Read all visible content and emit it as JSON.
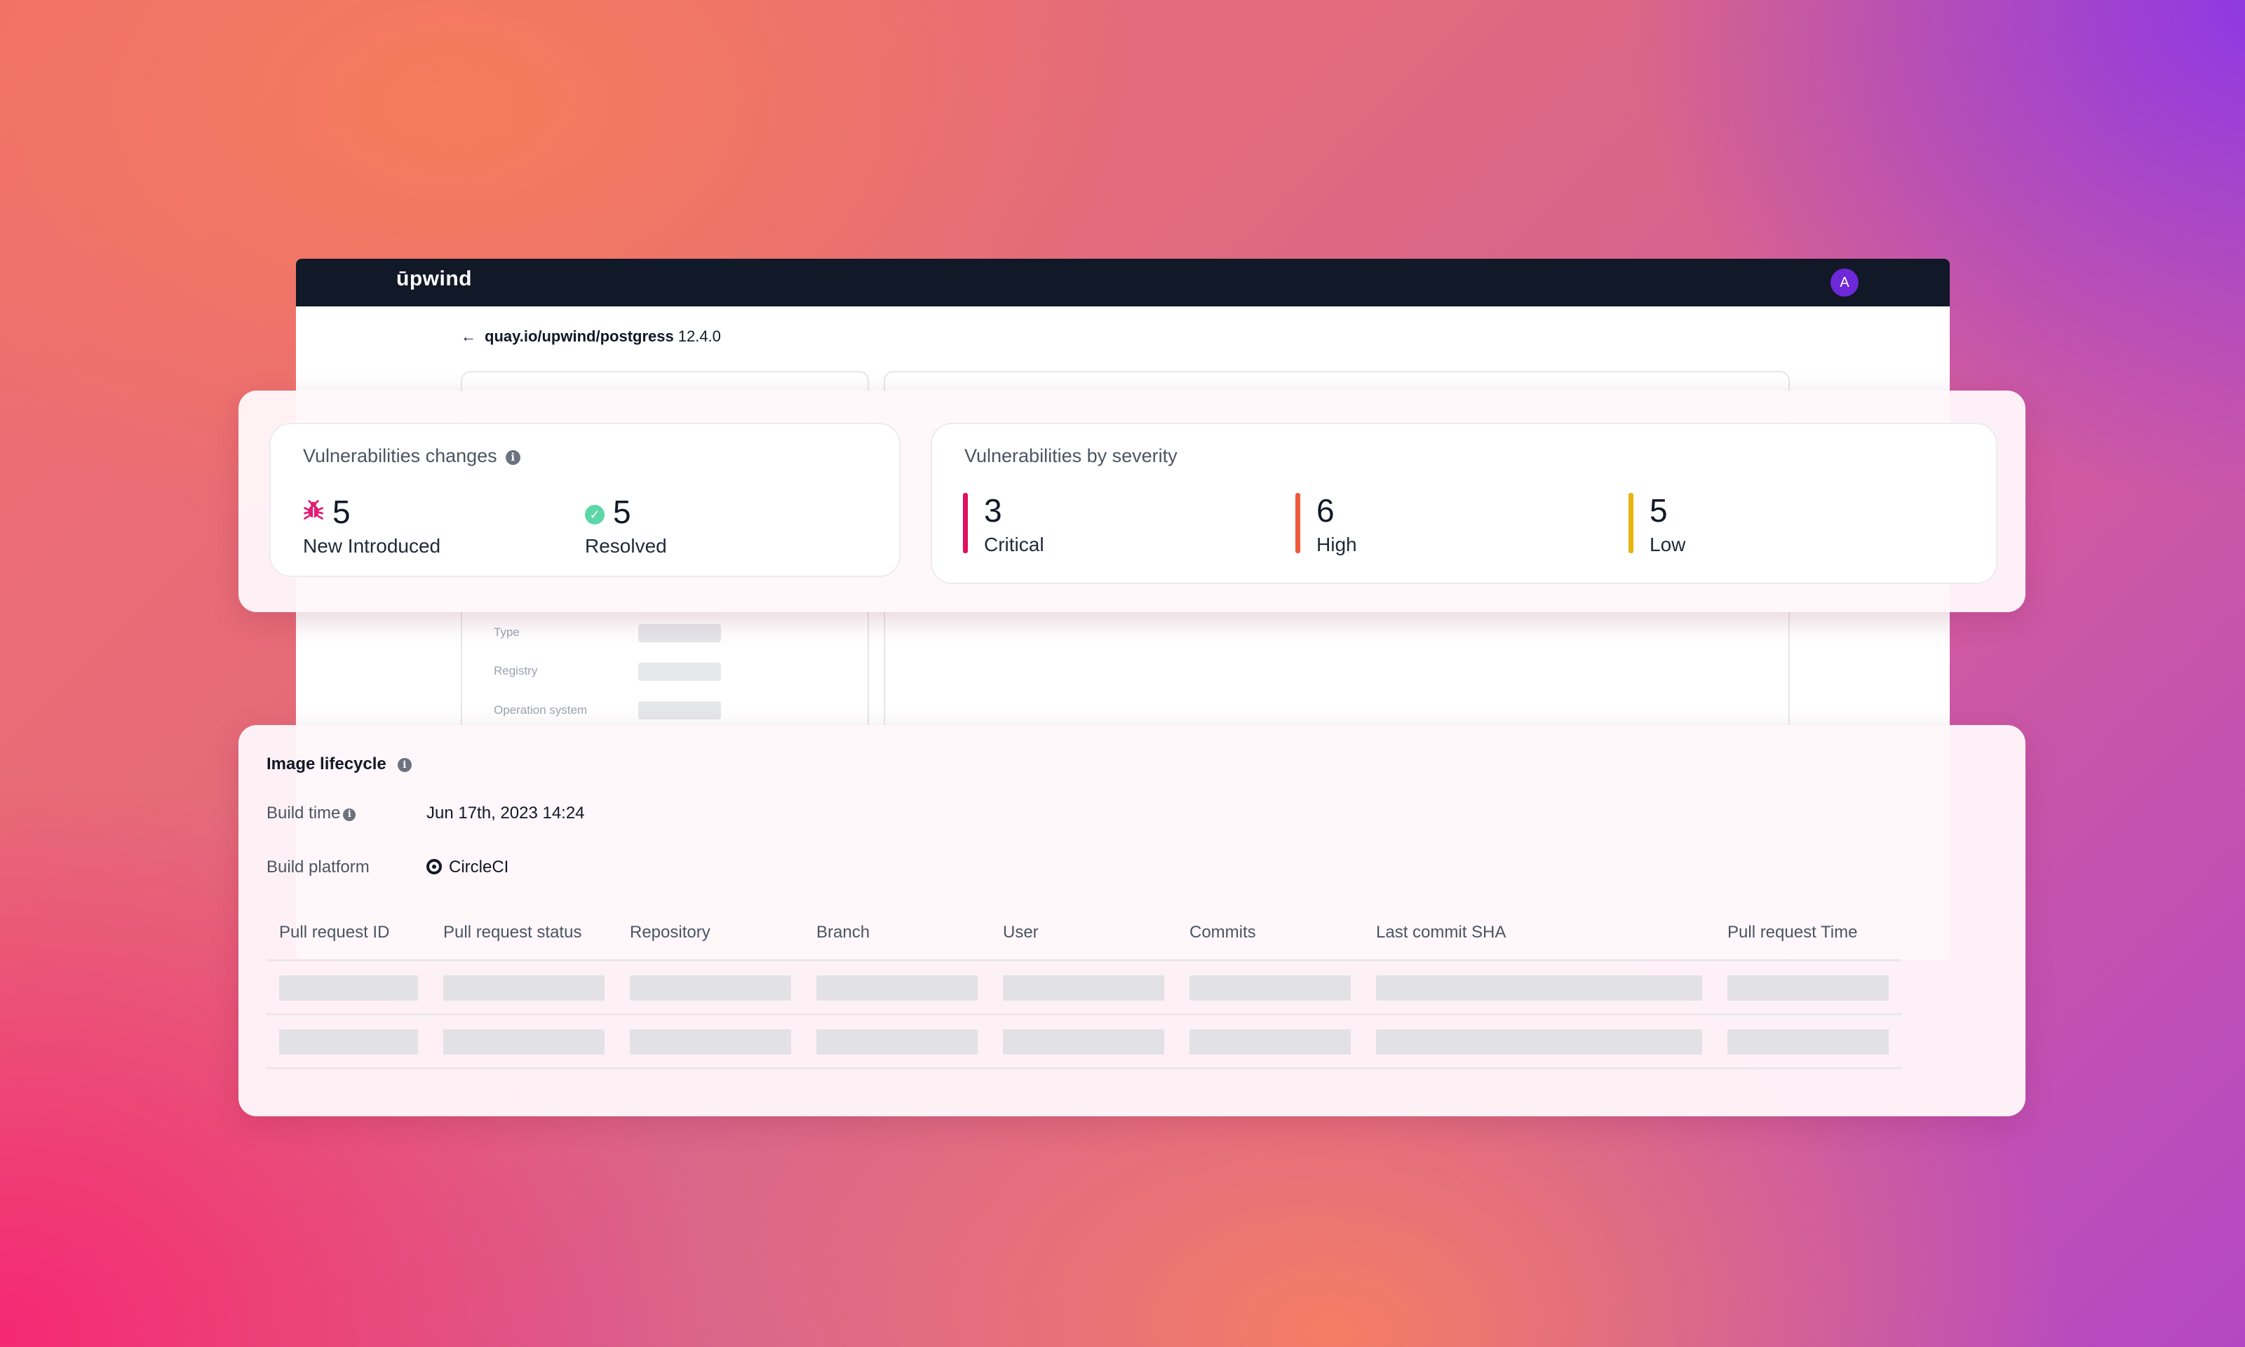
{
  "app": {
    "logo": "ūpwind",
    "avatar_initial": "A"
  },
  "breadcrumb": {
    "back_arrow": "←",
    "path": "quay.io/upwind/postgress",
    "version": "12.4.0"
  },
  "background_details": [
    "Type",
    "Registry",
    "Operation system"
  ],
  "vulnerabilities_changes": {
    "title": "Vulnerabilities changes",
    "new_introduced": {
      "value": "5",
      "label": "New Introduced",
      "icon": "bug-icon",
      "color": "#e11d74"
    },
    "resolved": {
      "value": "5",
      "label": "Resolved",
      "icon": "check-circle-icon",
      "color": "#5dd6a8"
    }
  },
  "vulnerabilities_by_severity": {
    "title": "Vulnerabilities by severity",
    "items": [
      {
        "value": "3",
        "label": "Critical",
        "color": "#e0115f"
      },
      {
        "value": "6",
        "label": "High",
        "color": "#f05a3c"
      },
      {
        "value": "5",
        "label": "Low",
        "color": "#e8b410"
      }
    ]
  },
  "image_lifecycle": {
    "title": "Image lifecycle",
    "build_time_label": "Build time",
    "build_time_value": "Jun 17th, 2023 14:24",
    "build_platform_label": "Build platform",
    "build_platform_value": "CircleCI",
    "table": {
      "columns": [
        "Pull request ID",
        "Pull request status",
        "Repository",
        "Branch",
        "User",
        "Commits",
        "Last commit SHA",
        "Pull request  Time"
      ],
      "rows": 2
    }
  }
}
